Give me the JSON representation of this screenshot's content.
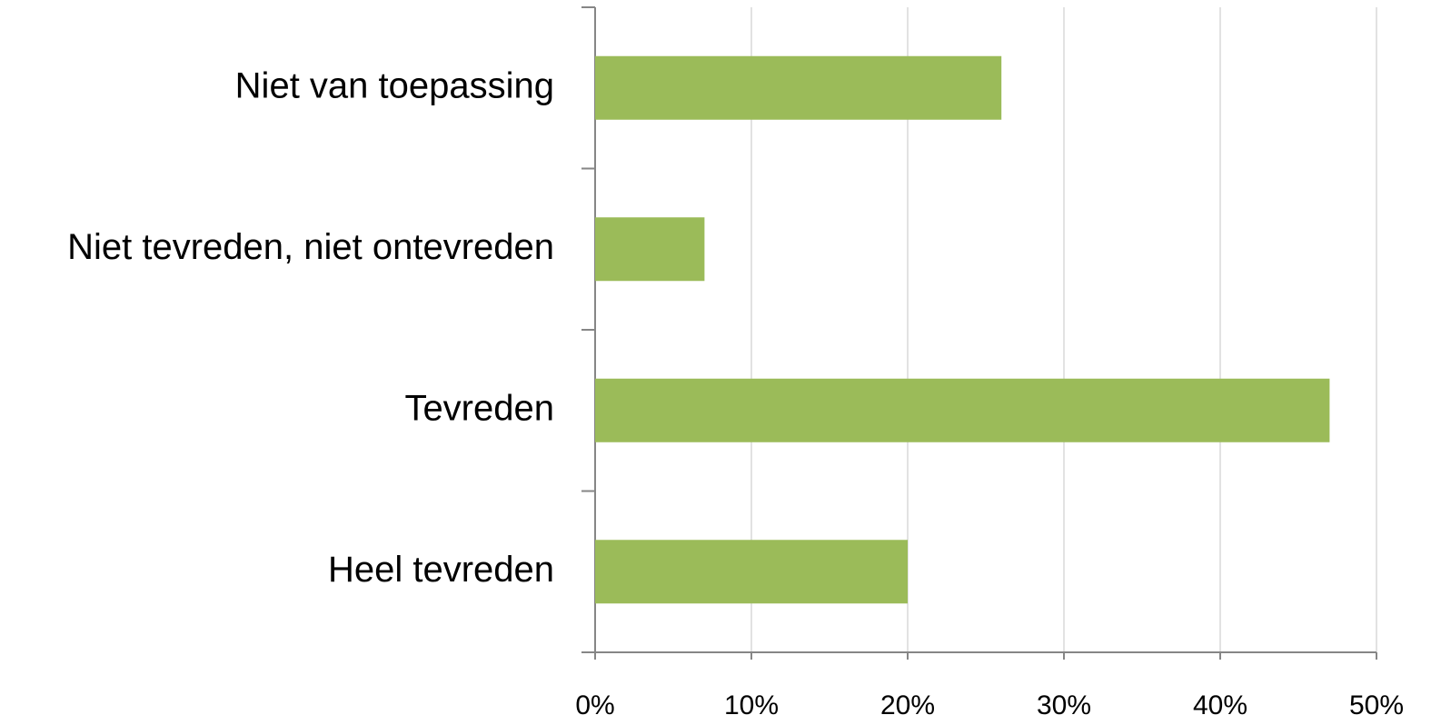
{
  "chart_data": {
    "type": "bar",
    "orientation": "horizontal",
    "categories": [
      "Niet van toepassing",
      "Niet tevreden, niet ontevreden",
      "Tevreden",
      "Heel tevreden"
    ],
    "values": [
      26,
      7,
      47,
      20
    ],
    "color": "#9bbb59",
    "xlim": [
      0,
      50
    ],
    "xticks": [
      {
        "value": 0,
        "label": "0%"
      },
      {
        "value": 10,
        "label": "10%"
      },
      {
        "value": 20,
        "label": "20%"
      },
      {
        "value": 30,
        "label": "30%"
      },
      {
        "value": 40,
        "label": "40%"
      },
      {
        "value": 50,
        "label": "50%"
      }
    ],
    "grid": true
  }
}
